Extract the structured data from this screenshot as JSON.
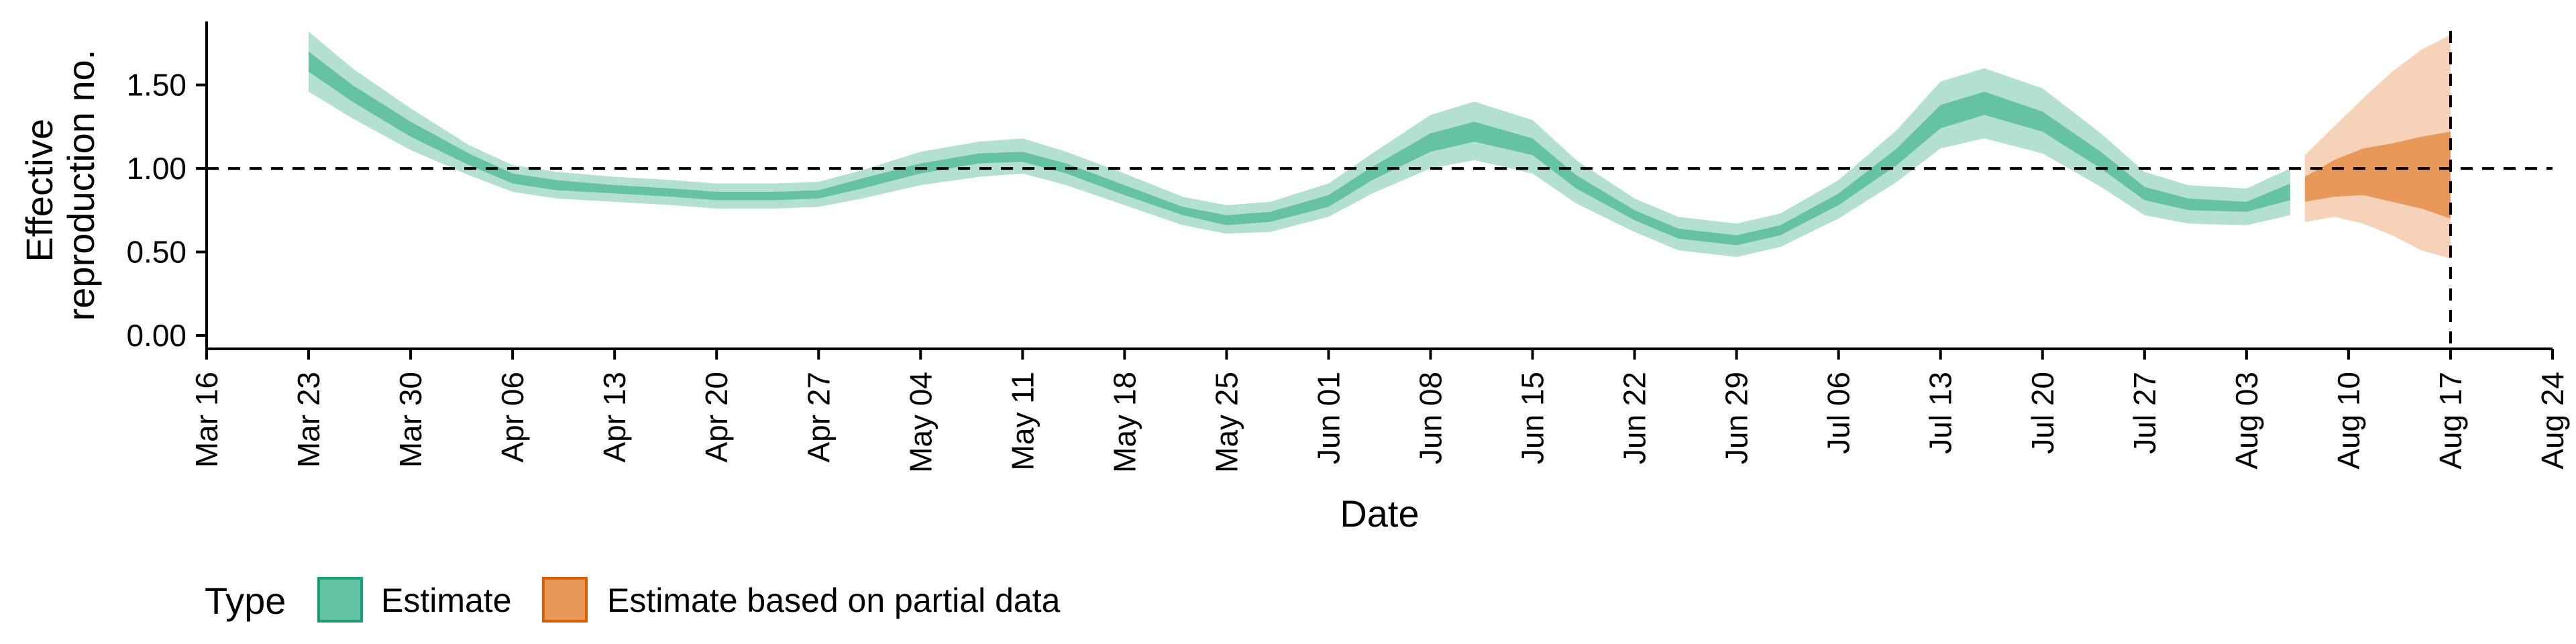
{
  "chart_data": {
    "type": "area",
    "xlabel": "Date",
    "ylabel_lines": [
      "Effective",
      "reproduction no."
    ],
    "y_ticks": [
      "0.00",
      "0.50",
      "1.00",
      "1.50"
    ],
    "ylim": [
      -0.08,
      1.88
    ],
    "x_ticks": [
      "Mar 16",
      "Mar 23",
      "Mar 30",
      "Apr 06",
      "Apr 13",
      "Apr 20",
      "Apr 27",
      "May 04",
      "May 11",
      "May 18",
      "May 25",
      "Jun 01",
      "Jun 08",
      "Jun 15",
      "Jun 22",
      "Jun 29",
      "Jul 06",
      "Jul 13",
      "Jul 20",
      "Jul 27",
      "Aug 03",
      "Aug 10",
      "Aug 17",
      "Aug 24"
    ],
    "reference_line_y": 1.0,
    "reference_line_date": "Aug 17",
    "grid": false,
    "legend_position": "bottom-left",
    "legend": {
      "title": "Type",
      "items": [
        {
          "label": "Estimate",
          "fill": "#66c2a5",
          "stroke": "#1b9e77"
        },
        {
          "label": "Estimate based on partial data",
          "fill": "#e8995a",
          "stroke": "#d95f02"
        }
      ]
    },
    "series": [
      {
        "name": "Estimate",
        "inner_color": "#66c2a5",
        "outer_color": "#b3e0d2",
        "x": [
          "Mar 23",
          "Mar 26",
          "Mar 30",
          "Apr 03",
          "Apr 06",
          "Apr 09",
          "Apr 13",
          "Apr 17",
          "Apr 20",
          "Apr 24",
          "Apr 27",
          "Apr 30",
          "May 04",
          "May 08",
          "May 11",
          "May 14",
          "May 18",
          "May 22",
          "May 25",
          "May 28",
          "Jun 01",
          "Jun 04",
          "Jun 08",
          "Jun 11",
          "Jun 15",
          "Jun 18",
          "Jun 22",
          "Jun 25",
          "Jun 29",
          "Jul 02",
          "Jul 06",
          "Jul 10",
          "Jul 13",
          "Jul 16",
          "Jul 20",
          "Jul 24",
          "Jul 27",
          "Jul 30",
          "Aug 03",
          "Aug 06"
        ],
        "inner_upper": [
          1.7,
          1.5,
          1.28,
          1.09,
          0.97,
          0.93,
          0.9,
          0.88,
          0.86,
          0.86,
          0.87,
          0.94,
          1.03,
          1.09,
          1.1,
          1.03,
          0.9,
          0.77,
          0.72,
          0.74,
          0.84,
          1.01,
          1.21,
          1.28,
          1.18,
          0.96,
          0.75,
          0.64,
          0.6,
          0.66,
          0.85,
          1.12,
          1.38,
          1.46,
          1.34,
          1.1,
          0.89,
          0.82,
          0.8,
          0.91
        ],
        "inner_lower": [
          1.58,
          1.4,
          1.19,
          1.02,
          0.91,
          0.87,
          0.85,
          0.83,
          0.81,
          0.81,
          0.82,
          0.88,
          0.97,
          1.03,
          1.04,
          0.97,
          0.84,
          0.72,
          0.66,
          0.68,
          0.77,
          0.93,
          1.1,
          1.16,
          1.08,
          0.88,
          0.69,
          0.58,
          0.54,
          0.6,
          0.78,
          1.02,
          1.24,
          1.32,
          1.22,
          1.0,
          0.81,
          0.75,
          0.74,
          0.81
        ],
        "outer_upper": [
          1.82,
          1.6,
          1.36,
          1.14,
          1.02,
          0.98,
          0.95,
          0.93,
          0.91,
          0.91,
          0.92,
          0.99,
          1.1,
          1.16,
          1.18,
          1.1,
          0.97,
          0.83,
          0.78,
          0.8,
          0.91,
          1.09,
          1.32,
          1.4,
          1.29,
          1.05,
          0.82,
          0.71,
          0.67,
          0.73,
          0.93,
          1.23,
          1.52,
          1.6,
          1.48,
          1.21,
          0.98,
          0.9,
          0.88,
          1.0
        ],
        "outer_lower": [
          1.46,
          1.3,
          1.11,
          0.96,
          0.86,
          0.82,
          0.8,
          0.78,
          0.76,
          0.76,
          0.77,
          0.82,
          0.9,
          0.95,
          0.97,
          0.9,
          0.78,
          0.66,
          0.61,
          0.62,
          0.71,
          0.85,
          1.0,
          1.05,
          0.97,
          0.79,
          0.62,
          0.51,
          0.47,
          0.53,
          0.7,
          0.92,
          1.12,
          1.18,
          1.09,
          0.89,
          0.72,
          0.67,
          0.66,
          0.72
        ]
      },
      {
        "name": "Estimate based on partial data",
        "inner_color": "#e8995a",
        "outer_color": "#f6d2b8",
        "x": [
          "Aug 07",
          "Aug 09",
          "Aug 11",
          "Aug 13",
          "Aug 15",
          "Aug 17"
        ],
        "inner_upper": [
          0.95,
          1.05,
          1.12,
          1.15,
          1.19,
          1.22
        ],
        "inner_lower": [
          0.8,
          0.83,
          0.84,
          0.8,
          0.76,
          0.7
        ],
        "outer_upper": [
          1.08,
          1.25,
          1.42,
          1.58,
          1.71,
          1.8
        ],
        "outer_lower": [
          0.68,
          0.71,
          0.67,
          0.6,
          0.51,
          0.46
        ]
      }
    ]
  }
}
